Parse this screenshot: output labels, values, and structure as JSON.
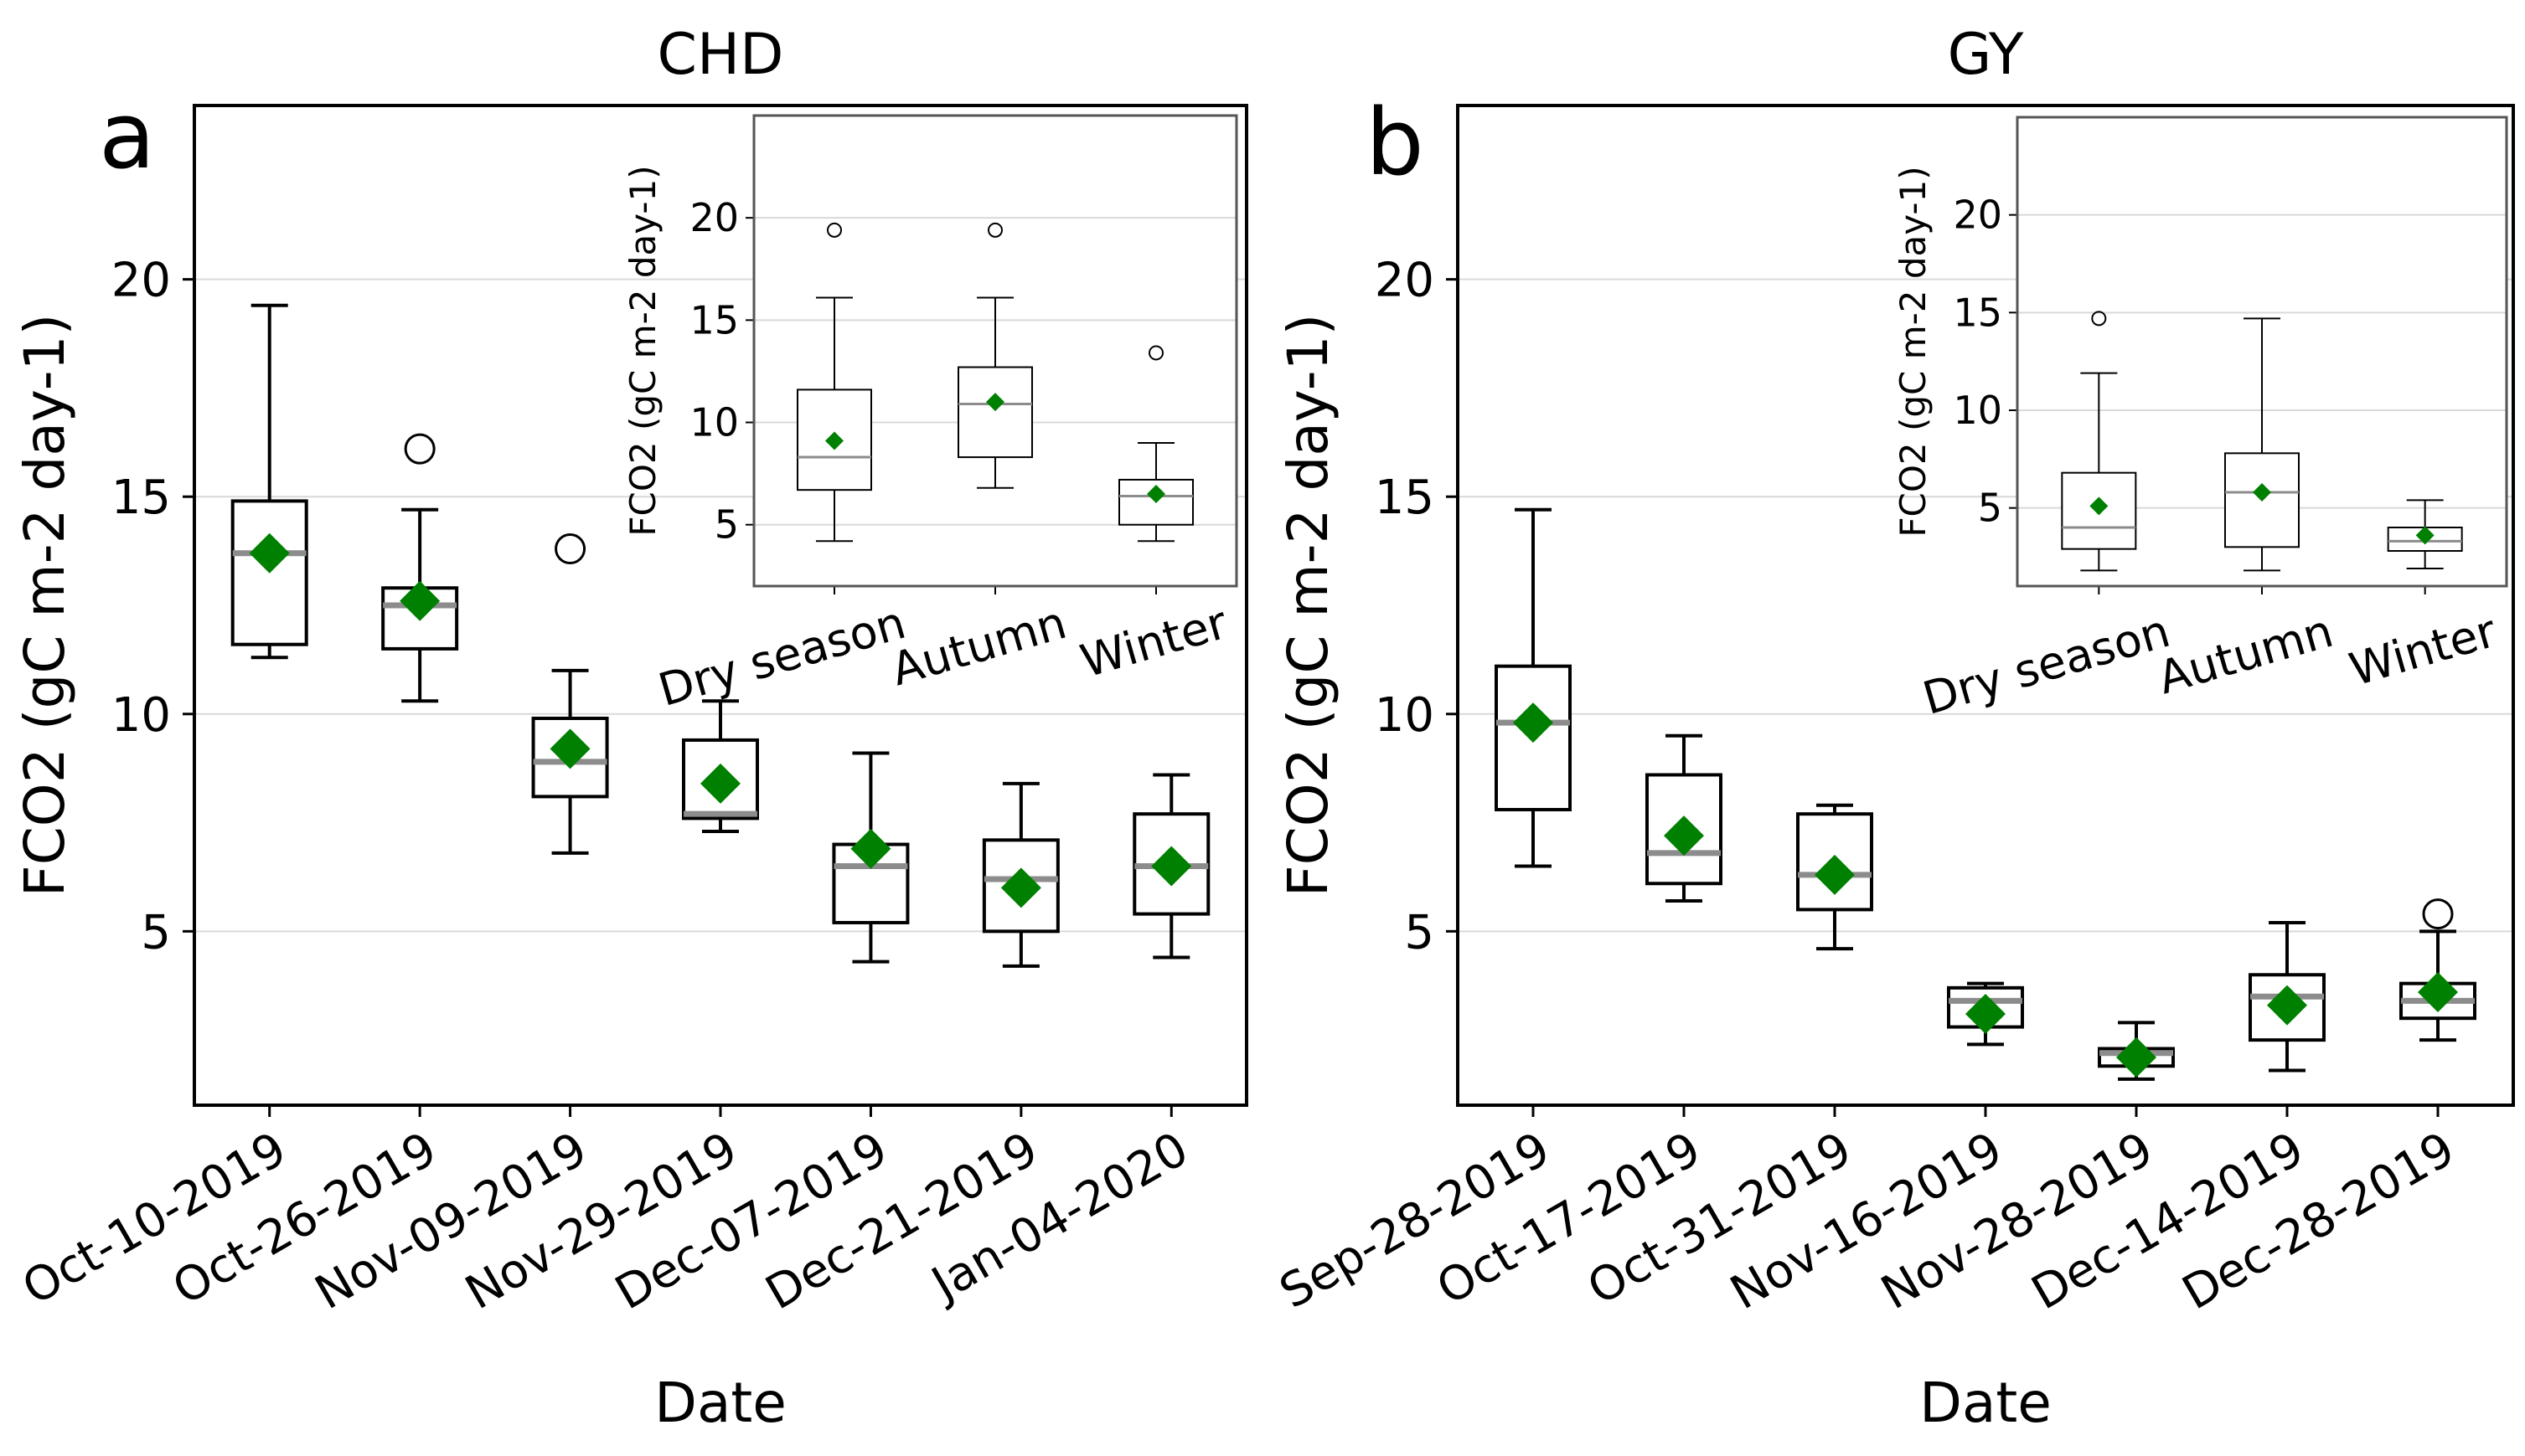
{
  "chart_data": [
    {
      "type": "box",
      "panel_letter": "a",
      "title": "CHD",
      "xlabel": "Date",
      "ylabel": "FCO2 (gC m-2 day-1)",
      "ylim": [
        1,
        24
      ],
      "yticks": [
        5,
        10,
        15,
        20
      ],
      "grid": "horizontal",
      "mean_color": "#008000",
      "categories": [
        "Oct-10-2019",
        "Oct-26-2019",
        "Nov-09-2019",
        "Nov-29-2019",
        "Dec-07-2019",
        "Dec-21-2019",
        "Jan-04-2020"
      ],
      "boxes": [
        {
          "whisker_low": 11.3,
          "q1": 11.6,
          "median": 13.7,
          "q3": 14.9,
          "whisker_high": 19.4,
          "mean": 13.7,
          "outliers": []
        },
        {
          "whisker_low": 10.3,
          "q1": 11.5,
          "median": 12.5,
          "q3": 12.9,
          "whisker_high": 14.7,
          "mean": 12.6,
          "outliers": [
            16.1
          ]
        },
        {
          "whisker_low": 6.8,
          "q1": 8.1,
          "median": 8.9,
          "q3": 9.9,
          "whisker_high": 11.0,
          "mean": 9.2,
          "outliers": [
            13.8
          ]
        },
        {
          "whisker_low": 7.3,
          "q1": 7.6,
          "median": 7.7,
          "q3": 9.4,
          "whisker_high": 10.3,
          "mean": 8.4,
          "outliers": []
        },
        {
          "whisker_low": 4.3,
          "q1": 5.2,
          "median": 6.5,
          "q3": 7.0,
          "whisker_high": 9.1,
          "mean": 6.9,
          "outliers": []
        },
        {
          "whisker_low": 4.2,
          "q1": 5.0,
          "median": 6.2,
          "q3": 7.1,
          "whisker_high": 8.4,
          "mean": 6.0,
          "outliers": []
        },
        {
          "whisker_low": 4.4,
          "q1": 5.4,
          "median": 6.5,
          "q3": 7.7,
          "whisker_high": 8.6,
          "mean": 6.5,
          "outliers": []
        }
      ],
      "inset": {
        "type": "box",
        "ylabel": "FCO2 (gC m-2 day-1)",
        "ylim": [
          2,
          25
        ],
        "yticks": [
          5,
          10,
          15,
          20
        ],
        "categories": [
          "Dry season",
          "Autumn",
          "Winter"
        ],
        "boxes": [
          {
            "whisker_low": 4.2,
            "q1": 6.7,
            "median": 8.3,
            "q3": 11.6,
            "whisker_high": 16.1,
            "mean": 9.1,
            "outliers": [
              19.4
            ]
          },
          {
            "whisker_low": 6.8,
            "q1": 8.3,
            "median": 10.9,
            "q3": 12.7,
            "whisker_high": 16.1,
            "mean": 11.0,
            "outliers": [
              19.4
            ]
          },
          {
            "whisker_low": 4.2,
            "q1": 5.0,
            "median": 6.4,
            "q3": 7.2,
            "whisker_high": 9.0,
            "mean": 6.5,
            "outliers": [
              13.4
            ]
          }
        ]
      }
    },
    {
      "type": "box",
      "panel_letter": "b",
      "title": "GY",
      "xlabel": "Date",
      "ylabel": "FCO2 (gC m-2 day-1)",
      "ylim": [
        1,
        24
      ],
      "yticks": [
        5,
        10,
        15,
        20
      ],
      "grid": "horizontal",
      "mean_color": "#008000",
      "categories": [
        "Sep-28-2019",
        "Oct-17-2019",
        "Oct-31-2019",
        "Nov-16-2019",
        "Nov-28-2019",
        "Dec-14-2019",
        "Dec-28-2019"
      ],
      "boxes": [
        {
          "whisker_low": 6.5,
          "q1": 7.8,
          "median": 9.8,
          "q3": 11.1,
          "whisker_high": 14.7,
          "mean": 9.8,
          "outliers": []
        },
        {
          "whisker_low": 5.7,
          "q1": 6.1,
          "median": 6.8,
          "q3": 8.6,
          "whisker_high": 9.5,
          "mean": 7.2,
          "outliers": []
        },
        {
          "whisker_low": 4.6,
          "q1": 5.5,
          "median": 6.3,
          "q3": 7.7,
          "whisker_high": 7.9,
          "mean": 6.3,
          "outliers": []
        },
        {
          "whisker_low": 2.4,
          "q1": 2.8,
          "median": 3.4,
          "q3": 3.7,
          "whisker_high": 3.8,
          "mean": 3.1,
          "outliers": []
        },
        {
          "whisker_low": 1.6,
          "q1": 1.9,
          "median": 2.2,
          "q3": 2.3,
          "whisker_high": 2.9,
          "mean": 2.1,
          "outliers": []
        },
        {
          "whisker_low": 1.8,
          "q1": 2.5,
          "median": 3.5,
          "q3": 4.0,
          "whisker_high": 5.2,
          "mean": 3.3,
          "outliers": []
        },
        {
          "whisker_low": 2.5,
          "q1": 3.0,
          "median": 3.4,
          "q3": 3.8,
          "whisker_high": 5.0,
          "mean": 3.6,
          "outliers": [
            5.4
          ]
        }
      ],
      "inset": {
        "type": "box",
        "ylabel": "FCO2 (gC m-2 day-1)",
        "ylim": [
          1,
          25
        ],
        "yticks": [
          5,
          10,
          15,
          20
        ],
        "categories": [
          "Dry season",
          "Autumn",
          "Winter"
        ],
        "boxes": [
          {
            "whisker_low": 1.8,
            "q1": 2.9,
            "median": 4.0,
            "q3": 6.8,
            "whisker_high": 11.9,
            "mean": 5.1,
            "outliers": [
              14.7
            ]
          },
          {
            "whisker_low": 1.8,
            "q1": 3.0,
            "median": 5.8,
            "q3": 7.8,
            "whisker_high": 14.7,
            "mean": 5.8,
            "outliers": []
          },
          {
            "whisker_low": 1.9,
            "q1": 2.8,
            "median": 3.3,
            "q3": 4.0,
            "whisker_high": 5.4,
            "mean": 3.6,
            "outliers": []
          }
        ]
      }
    }
  ]
}
